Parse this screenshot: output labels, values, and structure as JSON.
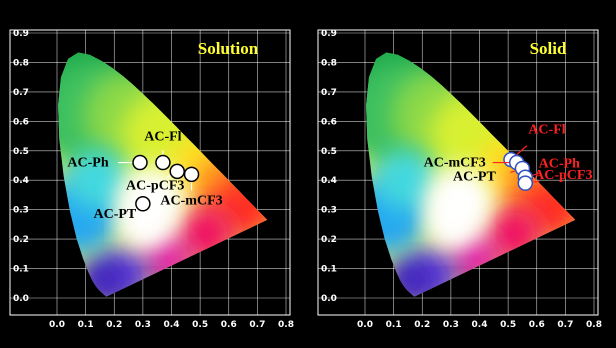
{
  "chart_data": [
    {
      "type": "scatter",
      "title": "Solution",
      "xlim": [
        0,
        0.8
      ],
      "ylim": [
        0,
        0.9
      ],
      "x_ticks": [
        0.0,
        0.1,
        0.2,
        0.3,
        0.4,
        0.5,
        0.6,
        0.7,
        0.8
      ],
      "y_ticks": [
        0.0,
        0.1,
        0.2,
        0.3,
        0.4,
        0.5,
        0.6,
        0.7,
        0.8,
        0.9
      ],
      "grid": true,
      "background": "CIE 1931 chromaticity diagram",
      "points": [
        {
          "label": "AC-Ph",
          "x": 0.29,
          "y": 0.46
        },
        {
          "label": "AC-Fl",
          "x": 0.37,
          "y": 0.46
        },
        {
          "label": "AC-pCF3",
          "x": 0.42,
          "y": 0.43
        },
        {
          "label": "AC-mCF3",
          "x": 0.47,
          "y": 0.42
        },
        {
          "label": "AC-PT",
          "x": 0.3,
          "y": 0.32
        }
      ],
      "label_color": "#ffffff",
      "title_color": "#ffff33"
    },
    {
      "type": "scatter",
      "title": "Solid",
      "xlim": [
        0,
        0.8
      ],
      "ylim": [
        0,
        0.9
      ],
      "x_ticks": [
        0.0,
        0.1,
        0.2,
        0.3,
        0.4,
        0.5,
        0.6,
        0.7,
        0.8
      ],
      "y_ticks": [
        0.0,
        0.1,
        0.2,
        0.3,
        0.4,
        0.5,
        0.6,
        0.7,
        0.8,
        0.9
      ],
      "grid": true,
      "background": "CIE 1931 chromaticity diagram",
      "points": [
        {
          "label": "AC-Fl",
          "x": 0.51,
          "y": 0.47
        },
        {
          "label": "AC-mCF3",
          "x": 0.53,
          "y": 0.46
        },
        {
          "label": "AC-PT",
          "x": 0.55,
          "y": 0.44
        },
        {
          "label": "AC-Ph",
          "x": 0.56,
          "y": 0.41
        },
        {
          "label": "AC-pCF3",
          "x": 0.56,
          "y": 0.39
        }
      ],
      "label_color": "#ff2222",
      "title_color": "#ffff33"
    }
  ]
}
